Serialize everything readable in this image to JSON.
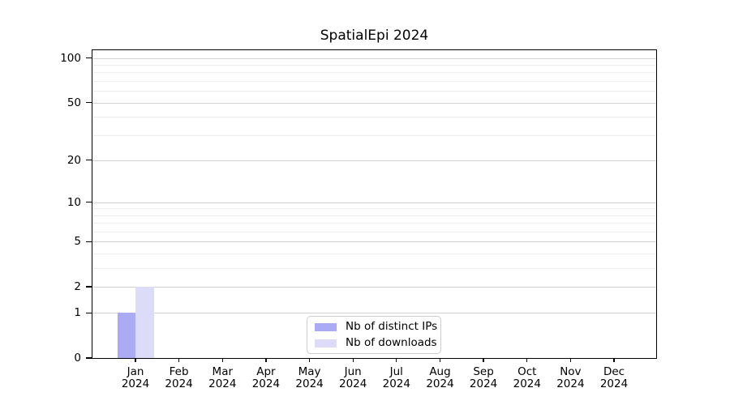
{
  "chart_data": {
    "type": "bar",
    "title": "SpatialEpi 2024",
    "categories": [
      "Jan",
      "Feb",
      "Mar",
      "Apr",
      "May",
      "Jun",
      "Jul",
      "Aug",
      "Sep",
      "Oct",
      "Nov",
      "Dec"
    ],
    "x_tick_year": "2024",
    "series": [
      {
        "name": "Nb of distinct IPs",
        "color": "#aaaaf5",
        "values": [
          1,
          0,
          0,
          0,
          0,
          0,
          0,
          0,
          0,
          0,
          0,
          0
        ]
      },
      {
        "name": "Nb of downloads",
        "color": "#dcdcf8",
        "values": [
          2,
          0,
          0,
          0,
          0,
          0,
          0,
          0,
          0,
          0,
          0,
          0
        ]
      }
    ],
    "y_axis": {
      "scale": "log1p",
      "tick_values": [
        0,
        1,
        2,
        5,
        10,
        20,
        50,
        100
      ],
      "tick_labels": [
        "0",
        "1",
        "2",
        "5",
        "10",
        "20",
        "50",
        "100"
      ],
      "minor_tick_values": [
        3,
        4,
        6,
        7,
        8,
        9,
        30,
        40,
        60,
        70,
        80,
        90
      ],
      "range_top_value": 113
    },
    "legend_position": "lower center",
    "grid": true
  },
  "colors": {
    "bar_distinct_ips": "#aaaaf5",
    "bar_downloads": "#dcdcf8",
    "grid_major": "#d2d2d2",
    "grid_minor": "#ededed",
    "spine": "#000000",
    "legend_border": "#cccccc",
    "background": "#ffffff"
  }
}
